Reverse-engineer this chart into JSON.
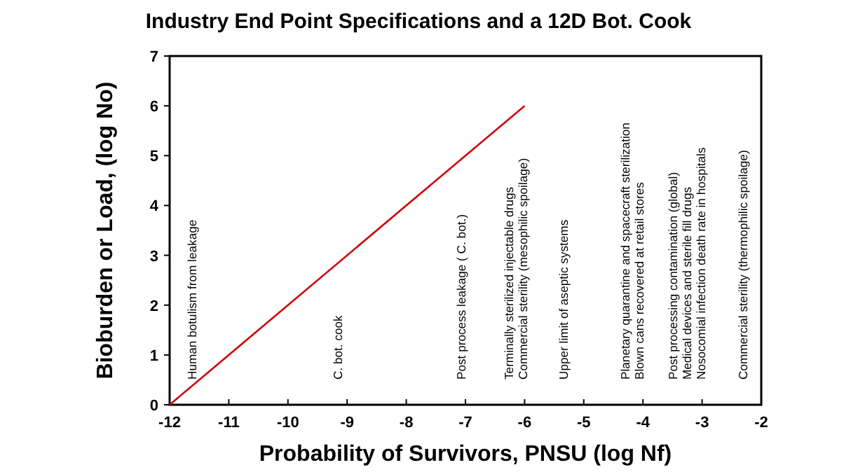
{
  "chart_data": {
    "type": "line",
    "title": "Industry End Point Specifications and a 12D Bot. Cook",
    "xlabel": "Probability of  Survivors, PNSU (log Nf)",
    "ylabel": "Bioburden or Load, (log No)",
    "x": [
      -12,
      -6
    ],
    "series": [
      {
        "color": "#cc0000",
        "values": [
          0,
          6
        ]
      }
    ],
    "xlim": [
      -12,
      -2
    ],
    "xticks": [
      -12,
      -11,
      -10,
      -9,
      -8,
      -7,
      -6,
      -5,
      -4,
      -3,
      -2
    ],
    "ylim": [
      0,
      7
    ],
    "yticks": [
      0,
      1,
      2,
      3,
      4,
      5,
      6,
      7
    ],
    "grid": false,
    "marker": "none",
    "line_style": "solid",
    "annotations": [
      "Human botulism  from leakage",
      "C. bot. cook",
      "Post process leakage  ( C. bot.)",
      "Terminally  sterilized  injectable  drugs",
      "Commercial  sterility  (mesophilic  spoilage)",
      "Upper  limit  of  aseptic  systems",
      "Planetary  quarantine  and  spacecraft  sterilization",
      "Blown  cans  recovered  at  retail  stores",
      "Post  processing  contamination  (global)",
      "Medical  devices  and  sterile  fill  drugs",
      "Nosocomial  infection  death  rate  in  hospitals",
      "Commercial  sterility  (thermophilic  spoilage)"
    ]
  }
}
